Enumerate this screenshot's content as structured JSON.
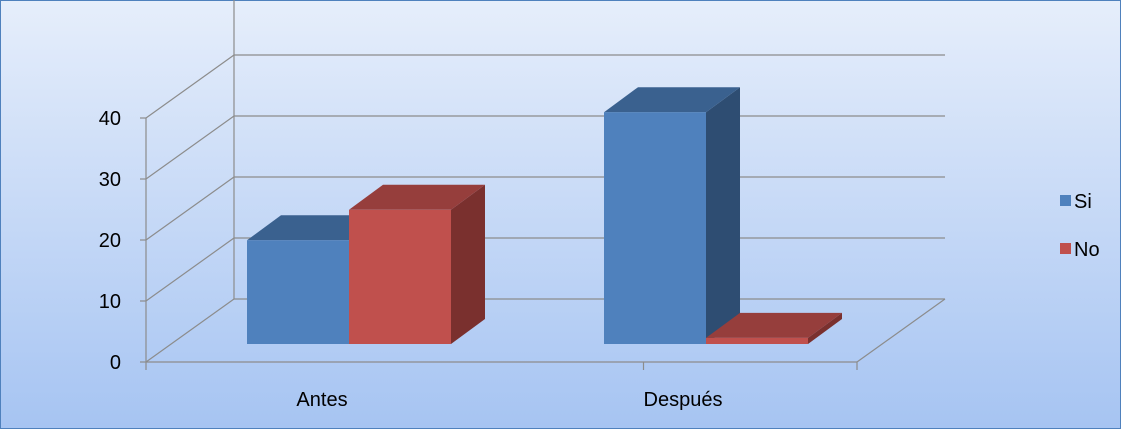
{
  "chart_data": {
    "type": "bar",
    "style": "3d-clustered-column",
    "categories": [
      "Antes",
      "Después"
    ],
    "series": [
      {
        "name": "Si",
        "values": [
          17,
          38
        ]
      },
      {
        "name": "No",
        "values": [
          22,
          1
        ]
      }
    ],
    "ylim": [
      0,
      40
    ],
    "yticks": [
      "0",
      "10",
      "20",
      "30",
      "40"
    ],
    "grid": true,
    "legend_position": "right"
  },
  "colors": {
    "background_top": "#e6eefb",
    "background_bottom": "#a6c4f2",
    "frame_border": "#4f81bd",
    "gridline": "#8c8c8c",
    "series": [
      {
        "front": "#4f81bd",
        "top": "#3a618f",
        "side": "#2e4d72"
      },
      {
        "front": "#c0504d",
        "top": "#963e3c",
        "side": "#7a302e"
      }
    ]
  }
}
